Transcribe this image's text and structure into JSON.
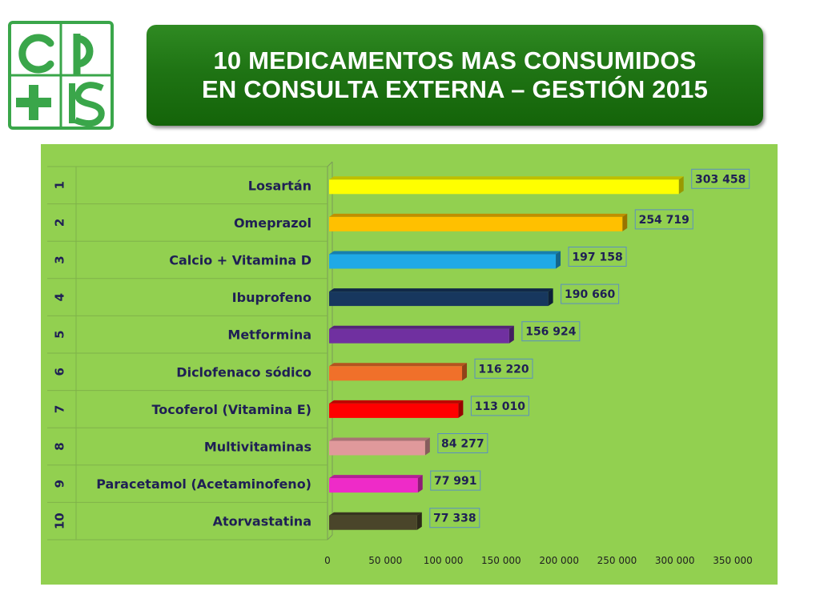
{
  "logo": {
    "text": "cps"
  },
  "title": {
    "line1": "10 MEDICAMENTOS MAS CONSUMIDOS",
    "line2": "EN CONSULTA EXTERNA – GESTIÓN 2015"
  },
  "colors": {
    "banner": "#1f7414",
    "chart_background": "#92d050",
    "logo_green": "#3aa64a"
  },
  "chart_data": {
    "type": "bar",
    "orientation": "horizontal",
    "title": "10 MEDICAMENTOS MAS CONSUMIDOS EN CONSULTA EXTERNA – GESTIÓN 2015",
    "xlabel": "",
    "ylabel": "",
    "xlim": [
      0,
      350000
    ],
    "xticks": [
      0,
      50000,
      100000,
      150000,
      200000,
      250000,
      300000,
      350000
    ],
    "xtick_labels": [
      "0",
      "50 000",
      "100 000",
      "150 000",
      "200 000",
      "250 000",
      "300 000",
      "350 000"
    ],
    "grid": false,
    "legend": "none",
    "categories": [
      {
        "rank": "1",
        "name": "Losartán",
        "value": 303458,
        "label": "303 458",
        "color": "#ffff00"
      },
      {
        "rank": "2",
        "name": "Omeprazol",
        "value": 254719,
        "label": "254 719",
        "color": "#ffc000"
      },
      {
        "rank": "3",
        "name": "Calcio + Vitamina D",
        "value": 197158,
        "label": "197 158",
        "color": "#1fa9e6"
      },
      {
        "rank": "4",
        "name": "Ibuprofeno",
        "value": 190660,
        "label": "190 660",
        "color": "#17375e"
      },
      {
        "rank": "5",
        "name": "Metformina",
        "value": 156924,
        "label": "156 924",
        "color": "#7030a0"
      },
      {
        "rank": "6",
        "name": "Diclofenaco sódico",
        "value": 116220,
        "label": "116 220",
        "color": "#f0702a"
      },
      {
        "rank": "7",
        "name": "Tocoferol (Vitamina E)",
        "value": 113010,
        "label": "113 010",
        "color": "#ff0000"
      },
      {
        "rank": "8",
        "name": "Multivitaminas",
        "value": 84277,
        "label": "84 277",
        "color": "#e0999b"
      },
      {
        "rank": "9",
        "name": "Paracetamol (Acetaminofeno)",
        "value": 77991,
        "label": "77 991",
        "color": "#ee2bc8"
      },
      {
        "rank": "10",
        "name": "Atorvastatina",
        "value": 77338,
        "label": "77 338",
        "color": "#4a452a"
      }
    ]
  }
}
